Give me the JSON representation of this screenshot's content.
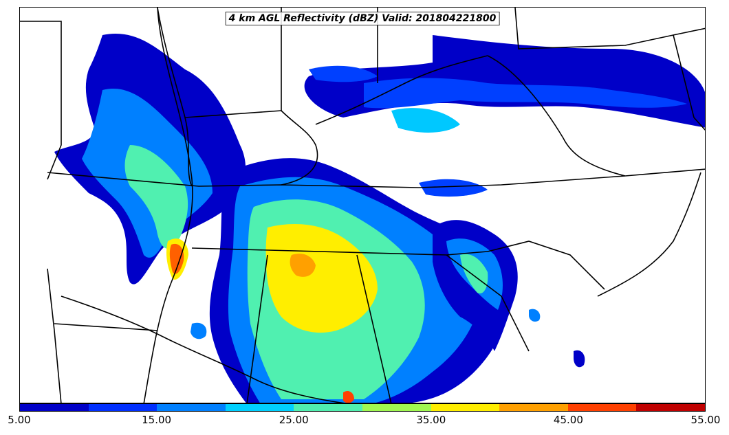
{
  "title": "4 km AGL Reflectivity (dBZ) Valid: 201804221800",
  "colorbar": {
    "colors": [
      "#0000c8",
      "#0040ff",
      "#0080ff",
      "#00c8ff",
      "#40e8c0",
      "#90f060",
      "#ffff00",
      "#ffb000",
      "#ff6000",
      "#ff2000",
      "#c00000"
    ],
    "segments": [
      "#0000c8",
      "#0030ff",
      "#0080ff",
      "#00d0ff",
      "#50f0b0",
      "#a0f850",
      "#ffee00",
      "#ffa000",
      "#ff4000",
      "#c00000"
    ],
    "tick_labels": [
      "5.00",
      "15.00",
      "25.00",
      "35.00",
      "45.00",
      "55.00"
    ]
  }
}
